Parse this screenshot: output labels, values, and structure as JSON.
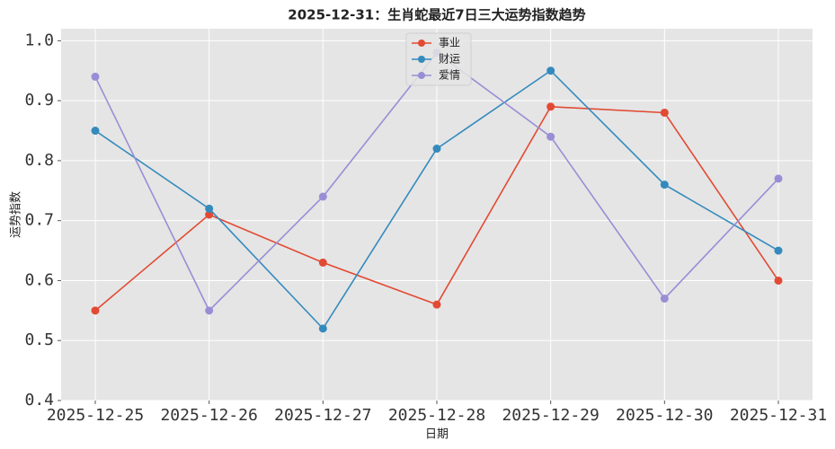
{
  "chart_data": {
    "type": "line",
    "title": "2025-12-31：生肖蛇最近7日三大运势指数趋势",
    "xlabel": "日期",
    "ylabel": "运势指数",
    "categories": [
      "2025-12-25",
      "2025-12-26",
      "2025-12-27",
      "2025-12-28",
      "2025-12-29",
      "2025-12-30",
      "2025-12-31"
    ],
    "series": [
      {
        "name": "事业",
        "color": "#E24A33",
        "values": [
          0.55,
          0.71,
          0.63,
          0.56,
          0.89,
          0.88,
          0.6
        ]
      },
      {
        "name": "财运",
        "color": "#348ABD",
        "values": [
          0.85,
          0.72,
          0.52,
          0.82,
          0.95,
          0.76,
          0.65
        ]
      },
      {
        "name": "爱情",
        "color": "#988ED5",
        "values": [
          0.94,
          0.55,
          0.74,
          0.98,
          0.84,
          0.57,
          0.77
        ]
      }
    ],
    "ylim": [
      0.4,
      1.02
    ],
    "yticks": [
      0.4,
      0.5,
      0.6,
      0.7,
      0.8,
      0.9,
      {
        "value": 1,
        "label": "1.0"
      }
    ],
    "grid": true,
    "legend": "upper center"
  }
}
